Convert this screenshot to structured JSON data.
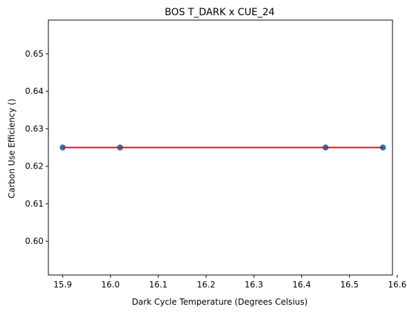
{
  "chart_data": {
    "type": "scatter",
    "title": "BOS T_DARK x CUE_24",
    "xlabel": "Dark Cycle Temperature (Degrees Celsius)",
    "ylabel": "Carbon Use Efficiency ()",
    "xlim": [
      15.87,
      16.59
    ],
    "ylim": [
      0.591,
      0.659
    ],
    "xticks": [
      "15.9",
      "16.0",
      "16.1",
      "16.2",
      "16.3",
      "16.4",
      "16.5",
      "16.6"
    ],
    "yticks": [
      "0.60",
      "0.61",
      "0.62",
      "0.63",
      "0.64",
      "0.65"
    ],
    "grid": false,
    "series": [
      {
        "kind": "scatter",
        "color": "#1f77b4",
        "x": [
          15.9,
          15.9,
          16.02,
          16.02,
          16.45,
          16.45,
          16.57,
          16.57
        ],
        "y": [
          0.625,
          0.625,
          0.625,
          0.625,
          0.625,
          0.625,
          0.625,
          0.625
        ]
      },
      {
        "kind": "line",
        "color": "#ff0000",
        "x": [
          15.9,
          16.57
        ],
        "y": [
          0.625,
          0.625
        ]
      }
    ]
  }
}
